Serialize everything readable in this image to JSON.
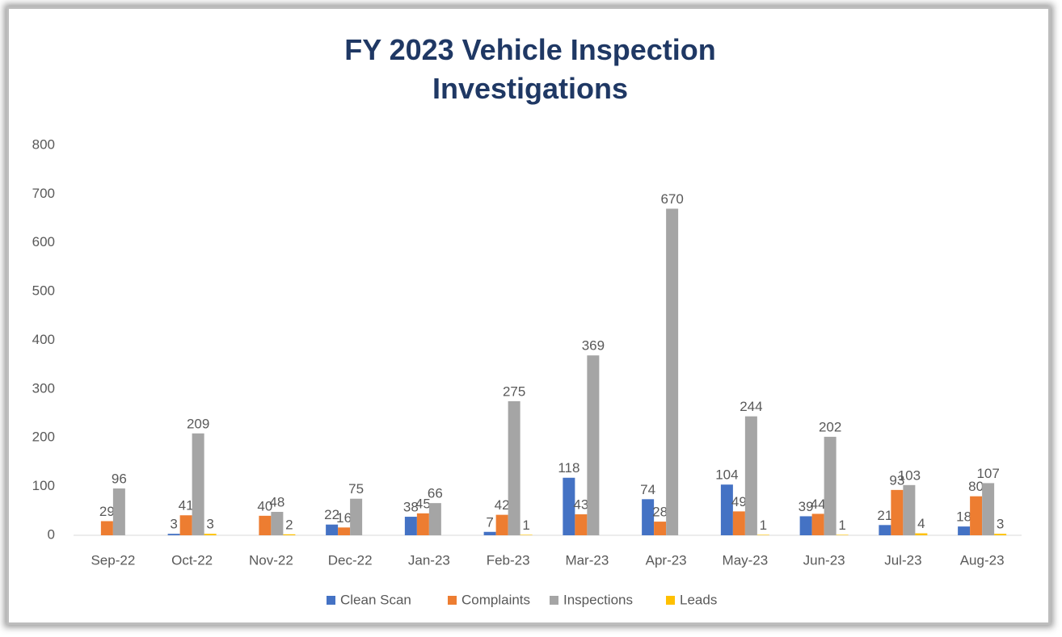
{
  "chart_data": {
    "type": "bar",
    "title": "FY 2023 Vehicle Inspection Investigations",
    "categories": [
      "Sep-22",
      "Oct-22",
      "Nov-22",
      "Dec-22",
      "Jan-23",
      "Feb-23",
      "Mar-23",
      "Apr-23",
      "May-23",
      "Jun-23",
      "Jul-23",
      "Aug-23"
    ],
    "series": [
      {
        "name": "Clean Scan",
        "color": "#4472c4",
        "values": [
          null,
          3,
          null,
          22,
          38,
          7,
          118,
          74,
          104,
          39,
          21,
          18
        ]
      },
      {
        "name": "Complaints",
        "color": "#ed7d31",
        "values": [
          29,
          41,
          40,
          16,
          45,
          42,
          43,
          28,
          49,
          44,
          93,
          80
        ]
      },
      {
        "name": "Inspections",
        "color": "#a5a5a5",
        "values": [
          96,
          209,
          48,
          75,
          66,
          275,
          369,
          670,
          244,
          202,
          103,
          107
        ]
      },
      {
        "name": "Leads",
        "color": "#ffc000",
        "values": [
          null,
          3,
          2,
          null,
          null,
          1,
          null,
          null,
          1,
          1,
          4,
          3
        ]
      }
    ],
    "ylim": [
      0,
      800
    ],
    "yticks": [
      0,
      100,
      200,
      300,
      400,
      500,
      600,
      700,
      800
    ],
    "grid": false,
    "legend": "bottom"
  }
}
